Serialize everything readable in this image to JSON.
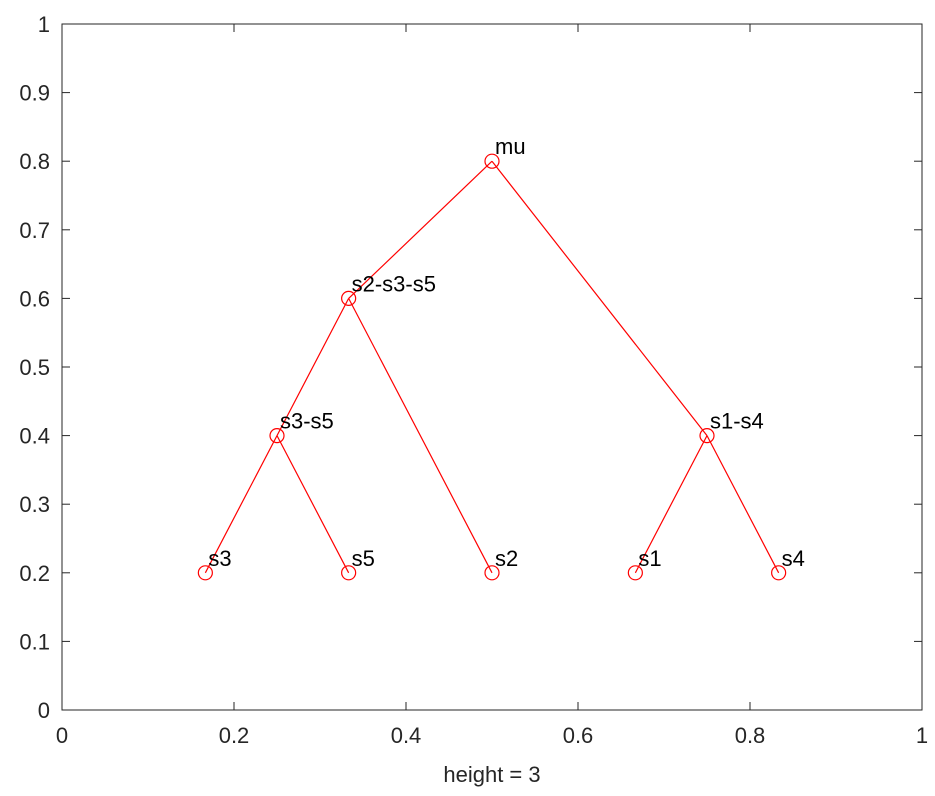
{
  "chart_data": {
    "type": "scatter",
    "title": "",
    "xlabel": "height = 3",
    "ylabel": "",
    "xlim": [
      0,
      1
    ],
    "ylim": [
      0,
      1
    ],
    "xticks": [
      "0",
      "0.2",
      "0.4",
      "0.6",
      "0.8",
      "1"
    ],
    "yticks": [
      "0",
      "0.1",
      "0.2",
      "0.3",
      "0.4",
      "0.5",
      "0.6",
      "0.7",
      "0.8",
      "0.9",
      "1"
    ],
    "grid": false,
    "line_color": "#ff0000",
    "marker": "circle",
    "nodes": [
      {
        "label": "mu",
        "x": 0.5,
        "y": 0.8
      },
      {
        "label": "s2-s3-s5",
        "x": 0.3333,
        "y": 0.6
      },
      {
        "label": "s3-s5",
        "x": 0.25,
        "y": 0.4
      },
      {
        "label": "s1-s4",
        "x": 0.75,
        "y": 0.4
      },
      {
        "label": "s3",
        "x": 0.1667,
        "y": 0.2
      },
      {
        "label": "s5",
        "x": 0.3333,
        "y": 0.2
      },
      {
        "label": "s2",
        "x": 0.5,
        "y": 0.2
      },
      {
        "label": "s1",
        "x": 0.6667,
        "y": 0.2
      },
      {
        "label": "s4",
        "x": 0.8333,
        "y": 0.2
      }
    ],
    "edges": [
      [
        "mu",
        "s2-s3-s5"
      ],
      [
        "mu",
        "s1-s4"
      ],
      [
        "s2-s3-s5",
        "s3-s5"
      ],
      [
        "s2-s3-s5",
        "s2"
      ],
      [
        "s3-s5",
        "s3"
      ],
      [
        "s3-s5",
        "s5"
      ],
      [
        "s1-s4",
        "s1"
      ],
      [
        "s1-s4",
        "s4"
      ]
    ]
  }
}
